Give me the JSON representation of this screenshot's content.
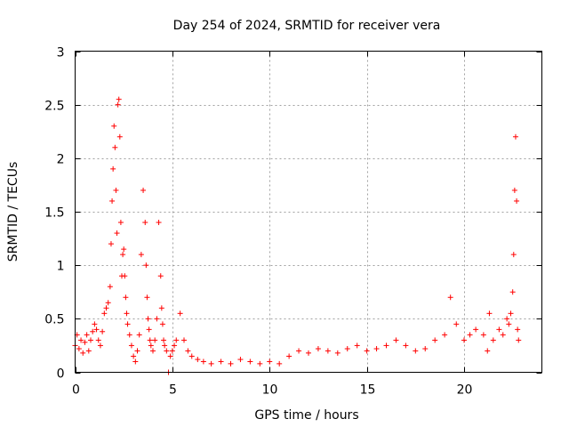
{
  "chart_data": {
    "type": "scatter",
    "title": "Day 254 of 2024, SRMTID for receiver vera",
    "xlabel": "GPS time / hours",
    "ylabel": "SRMTID / TECUs",
    "xlim": [
      0,
      24
    ],
    "ylim": [
      0,
      3
    ],
    "xticks": [
      0,
      5,
      10,
      15,
      20
    ],
    "yticks": [
      0,
      0.5,
      1,
      1.5,
      2,
      2.5,
      3
    ],
    "xtick_labels": [
      "0",
      "5",
      "10",
      "15",
      "20"
    ],
    "ytick_labels": [
      "0",
      "0.5",
      "1",
      "1.5",
      "2",
      "2.5",
      "3"
    ],
    "grid": true,
    "marker": "+",
    "color": "#ff0000",
    "series": [
      {
        "name": "SRMTID",
        "x": [
          0.0,
          0.1,
          0.2,
          0.3,
          0.4,
          0.5,
          0.6,
          0.7,
          0.8,
          0.9,
          1.0,
          1.1,
          1.2,
          1.3,
          1.4,
          1.5,
          1.6,
          1.7,
          1.8,
          1.85,
          1.9,
          1.95,
          2.0,
          2.05,
          2.1,
          2.15,
          2.2,
          2.25,
          2.3,
          2.35,
          2.4,
          2.45,
          2.5,
          2.55,
          2.6,
          2.65,
          2.7,
          2.8,
          2.9,
          3.0,
          3.1,
          3.2,
          3.3,
          3.4,
          3.5,
          3.6,
          3.65,
          3.7,
          3.75,
          3.8,
          3.85,
          3.9,
          4.0,
          4.1,
          4.2,
          4.3,
          4.4,
          4.45,
          4.5,
          4.55,
          4.6,
          4.7,
          4.8,
          4.9,
          5.0,
          5.1,
          5.2,
          5.4,
          5.6,
          5.8,
          6.0,
          6.3,
          6.6,
          7.0,
          7.5,
          8.0,
          8.5,
          9.0,
          9.5,
          10.0,
          10.5,
          11.0,
          11.5,
          12.0,
          12.5,
          13.0,
          13.5,
          14.0,
          14.5,
          15.0,
          15.5,
          16.0,
          16.5,
          17.0,
          17.5,
          18.0,
          18.5,
          19.0,
          19.3,
          19.6,
          20.0,
          20.3,
          20.6,
          21.0,
          21.2,
          21.3,
          21.5,
          21.8,
          22.0,
          22.2,
          22.3,
          22.4,
          22.5,
          22.55,
          22.6,
          22.65,
          22.7,
          22.75,
          22.8
        ],
        "y": [
          0.25,
          0.35,
          0.22,
          0.3,
          0.18,
          0.28,
          0.35,
          0.2,
          0.3,
          0.38,
          0.45,
          0.4,
          0.3,
          0.25,
          0.38,
          0.55,
          0.6,
          0.65,
          0.8,
          1.2,
          1.6,
          1.9,
          2.3,
          2.1,
          1.7,
          1.3,
          2.5,
          2.55,
          2.2,
          1.4,
          0.9,
          1.1,
          1.15,
          0.9,
          0.7,
          0.55,
          0.45,
          0.35,
          0.25,
          0.15,
          0.1,
          0.2,
          0.35,
          1.1,
          1.7,
          1.4,
          1.0,
          0.7,
          0.5,
          0.4,
          0.3,
          0.25,
          0.2,
          0.3,
          0.5,
          1.4,
          0.9,
          0.6,
          0.45,
          0.3,
          0.25,
          0.2,
          0.0,
          0.15,
          0.2,
          0.25,
          0.3,
          0.55,
          0.3,
          0.2,
          0.15,
          0.12,
          0.1,
          0.08,
          0.1,
          0.08,
          0.12,
          0.1,
          0.08,
          0.1,
          0.08,
          0.15,
          0.2,
          0.18,
          0.22,
          0.2,
          0.18,
          0.22,
          0.25,
          0.2,
          0.22,
          0.25,
          0.3,
          0.25,
          0.2,
          0.22,
          0.3,
          0.35,
          0.7,
          0.45,
          0.3,
          0.35,
          0.4,
          0.35,
          0.2,
          0.55,
          0.3,
          0.4,
          0.35,
          0.5,
          0.45,
          0.55,
          0.75,
          1.1,
          1.7,
          2.2,
          1.6,
          0.4,
          0.3
        ]
      }
    ]
  }
}
